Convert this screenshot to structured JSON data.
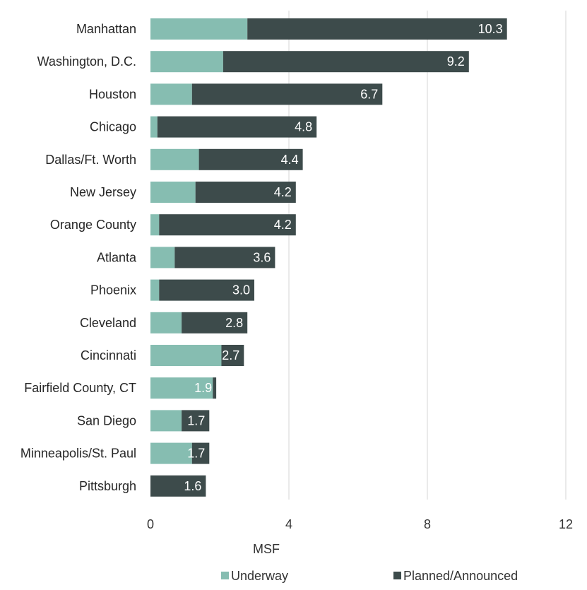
{
  "chart_data": {
    "type": "bar",
    "orientation": "horizontal",
    "stacked": true,
    "categories": [
      "Manhattan",
      "Washington, D.C.",
      "Houston",
      "Chicago",
      "Dallas/Ft. Worth",
      "New Jersey",
      "Orange County",
      "Atlanta",
      "Phoenix",
      "Cleveland",
      "Cincinnati",
      "Fairfield County, CT",
      "San Diego",
      "Minneapolis/St. Paul",
      "Pittsburgh"
    ],
    "series": [
      {
        "name": "Underway",
        "color": "#86bdb1",
        "values": [
          2.8,
          2.1,
          1.2,
          0.2,
          1.4,
          1.3,
          0.25,
          0.7,
          0.25,
          0.9,
          2.05,
          1.8,
          0.9,
          1.2,
          0.0
        ]
      },
      {
        "name": "Planned/Announced",
        "color": "#3d4b4b",
        "values": [
          7.5,
          7.1,
          5.5,
          4.6,
          3.0,
          2.9,
          3.95,
          2.9,
          2.75,
          1.9,
          0.65,
          0.1,
          0.8,
          0.5,
          1.6
        ]
      }
    ],
    "totals": [
      10.3,
      9.2,
      6.7,
      4.8,
      4.4,
      4.2,
      4.2,
      3.6,
      3.0,
      2.8,
      2.7,
      1.9,
      1.7,
      1.7,
      1.6
    ],
    "total_labels": [
      "10.3",
      "9.2",
      "6.7",
      "4.8",
      "4.4",
      "4.2",
      "4.2",
      "3.6",
      "3.0",
      "2.8",
      "2.7",
      "1.9",
      "1.7",
      "1.7",
      "1.6"
    ],
    "xlim": [
      0,
      12
    ],
    "xticks": [
      0,
      4,
      8,
      12
    ],
    "xlabel": "MSF",
    "title": "",
    "grid": "vertical",
    "legend_position": "bottom",
    "gridline_color": "#d4d4d4"
  }
}
